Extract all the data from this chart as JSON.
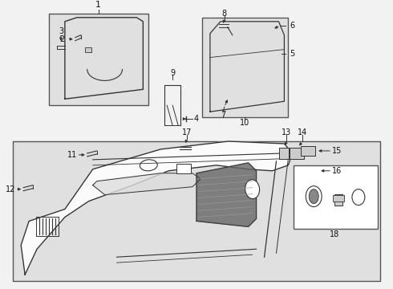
{
  "bg_color": "#f2f2f2",
  "fig_width": 4.9,
  "fig_height": 3.6,
  "dpi": 100,
  "border_color": "#555555",
  "line_color": "#333333",
  "label_color": "#111111",
  "box_bg": "#e8e8e8",
  "inset_bg": "#e0e0e0",
  "white": "#ffffff"
}
